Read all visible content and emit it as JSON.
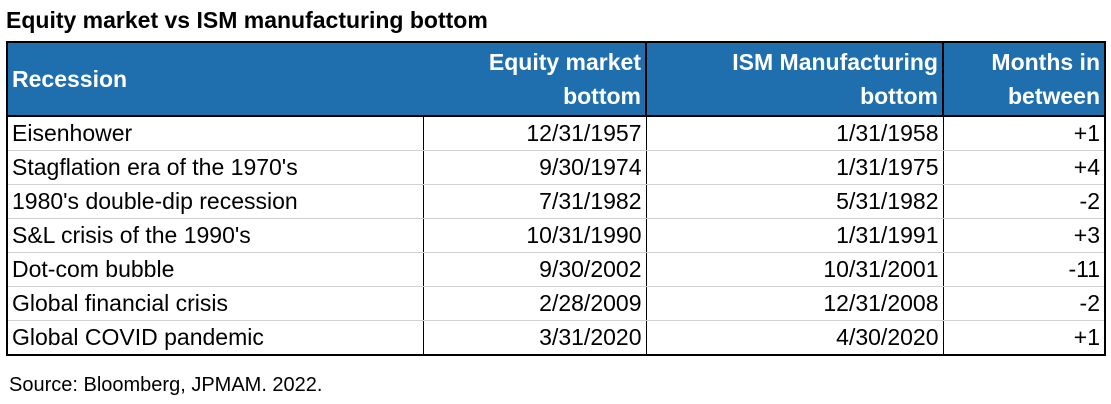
{
  "title": "Equity market vs ISM manufacturing bottom",
  "table": {
    "headers": {
      "recession": "Recession",
      "equity_line1": "Equity market",
      "equity_line2": "bottom",
      "ism_line1": "ISM Manufacturing",
      "ism_line2": "bottom",
      "months_line1": "Months in",
      "months_line2": "between"
    },
    "rows": [
      {
        "recession": "Eisenhower",
        "equity": "12/31/1957",
        "ism": "1/31/1958",
        "months": "+1"
      },
      {
        "recession": "Stagflation era of the 1970's",
        "equity": "9/30/1974",
        "ism": "1/31/1975",
        "months": "+4"
      },
      {
        "recession": "1980's double-dip recession",
        "equity": "7/31/1982",
        "ism": "5/31/1982",
        "months": "-2"
      },
      {
        "recession": "S&L crisis of the 1990's",
        "equity": "10/31/1990",
        "ism": "1/31/1991",
        "months": "+3"
      },
      {
        "recession": "Dot-com bubble",
        "equity": "9/30/2002",
        "ism": "10/31/2001",
        "months": "-11"
      },
      {
        "recession": "Global financial crisis",
        "equity": "2/28/2009",
        "ism": "12/31/2008",
        "months": "-2"
      },
      {
        "recession": "Global COVID pandemic",
        "equity": "3/31/2020",
        "ism": "4/30/2020",
        "months": "+1"
      }
    ]
  },
  "source": "Source: Bloomberg, JPMAM. 2022.",
  "colors": {
    "header_bg": "#1f6fae",
    "header_text": "#ffffff"
  }
}
